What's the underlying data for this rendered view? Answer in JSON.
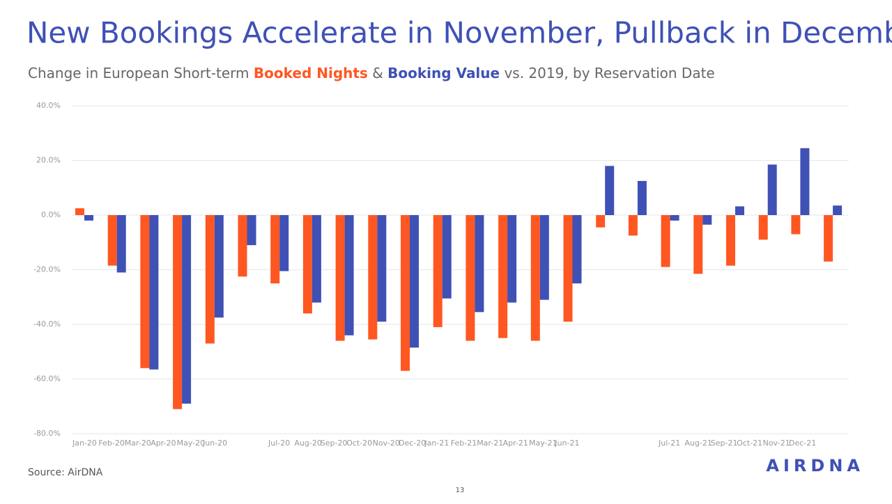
{
  "chart_data": {
    "type": "bar",
    "title": "New Bookings Accelerate in November, Pullback in December",
    "subtitle": {
      "prefix": "Change in European Short-term ",
      "middle": " & ",
      "suffix": " vs. 2019, by Reservation Date"
    },
    "categories": [
      "Jan-20",
      "Feb-20",
      "Mar-20",
      "Apr-20",
      "May-20",
      "Jun-20",
      "Jul-20",
      "Aug-20",
      "Sep-20",
      "Oct-20",
      "Nov-20",
      "Dec-20",
      "Jan-21",
      "Feb-21",
      "Mar-21",
      "Apr-21",
      "May-21",
      "Jun-21",
      "Jul-21",
      "Aug-21",
      "Sep-21",
      "Oct-21",
      "Nov-21",
      "Dec-21"
    ],
    "series": [
      {
        "name": "Booked Nights",
        "color": "#ff5722",
        "values": [
          2.5,
          -18.5,
          -56,
          -71,
          -47,
          -22.5,
          -25,
          -36,
          -46,
          -45.5,
          -57,
          -41,
          -46,
          -45,
          -46,
          -39,
          -4.5,
          -7.5,
          -19,
          -21.5,
          -18.5,
          -9,
          -7,
          -17
        ]
      },
      {
        "name": "Booking Value",
        "color": "#3f51b5",
        "values": [
          -2,
          -21,
          -56.5,
          -69,
          -37.5,
          -11,
          -20.5,
          -32,
          -44,
          -39,
          -48.5,
          -30.5,
          -35.5,
          -32,
          -31,
          -25,
          18,
          12.5,
          -2,
          -3.5,
          3.2,
          18.5,
          24.5,
          3.5
        ]
      }
    ],
    "ylim": [
      -80,
      40
    ],
    "yticks": [
      {
        "value": -80,
        "label": "-80.0%"
      },
      {
        "value": -60,
        "label": "-60.0%"
      },
      {
        "value": -40,
        "label": "-40.0%"
      },
      {
        "value": -20,
        "label": "-20.0%"
      },
      {
        "value": 0,
        "label": "0.0%"
      },
      {
        "value": 20,
        "label": "20.0%"
      },
      {
        "value": 40,
        "label": "40.0%"
      }
    ],
    "grid": true,
    "source": "Source: AirDNA",
    "page_number": "13",
    "logo": "AIRDNA"
  }
}
